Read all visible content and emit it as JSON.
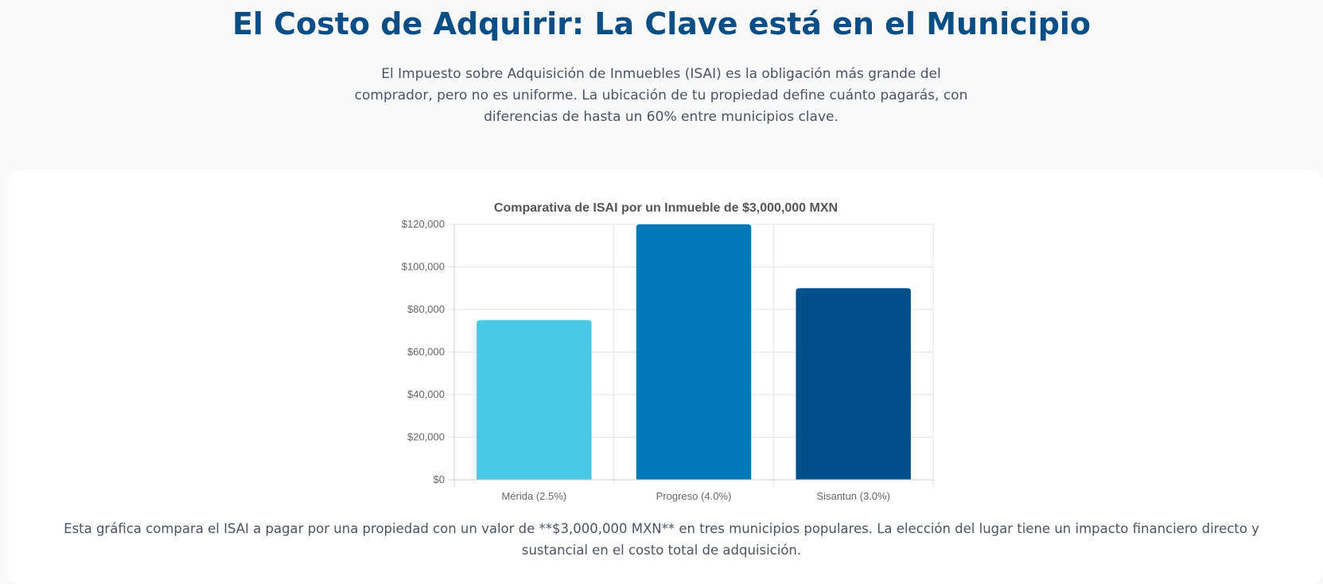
{
  "header": {
    "title": "El Costo de Adquirir: La Clave está en el Municipio",
    "intro": "El Impuesto sobre Adquisición de Inmuebles (ISAI) es la obligación más grande del comprador, pero no es uniforme. La ubicación de tu propiedad define cuánto pagarás, con diferencias de hasta un 60% entre municipios clave."
  },
  "chart_data": {
    "type": "bar",
    "title": "Comparativa de ISAI por un Inmueble de $3,000,000 MXN",
    "xlabel": "",
    "ylabel": "",
    "categories": [
      "Mérida (2.5%)",
      "Progreso (4.0%)",
      "Sisantun (3.0%)"
    ],
    "values": [
      75000,
      120000,
      90000
    ],
    "ylim": [
      0,
      120000
    ],
    "yticks": [
      0,
      20000,
      40000,
      60000,
      80000,
      100000,
      120000
    ],
    "ytick_labels": [
      "$0",
      "$20,000",
      "$40,000",
      "$60,000",
      "$80,000",
      "$100,000",
      "$120,000"
    ],
    "colors": [
      "#48cae4",
      "#0077b6",
      "#00508b"
    ],
    "grid": true,
    "legend": "none"
  },
  "caption": "Esta gráfica compara el ISAI a pagar por una propiedad con un valor de **$3,000,000 MXN** en tres municipios populares. La elección del lugar tiene un impacto financiero directo y sustancial en el costo total de adquisición."
}
